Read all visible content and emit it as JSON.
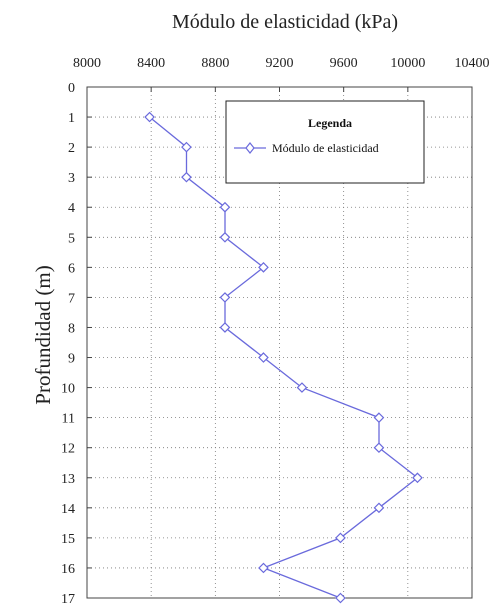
{
  "chart_data": {
    "type": "line",
    "title": "Módulo de elasticidad (kPa)",
    "xlabel": "Módulo de elasticidad (kPa)",
    "ylabel": "Profundidad (m)",
    "x_axis_position": "top",
    "y_axis_inverted": true,
    "xlim": [
      8000,
      10400
    ],
    "ylim": [
      0,
      17
    ],
    "x_ticks": [
      8000,
      8400,
      8800,
      9200,
      9600,
      10000,
      10400
    ],
    "y_ticks": [
      0,
      1,
      2,
      3,
      4,
      5,
      6,
      7,
      8,
      9,
      10,
      11,
      12,
      13,
      14,
      15,
      16,
      17
    ],
    "grid": true,
    "grid_style": "dotted",
    "legend": {
      "title": "Legenda",
      "position": "top-right"
    },
    "series": [
      {
        "name": "Módulo de elasticidad",
        "color": "#6a6adc",
        "marker": "diamond",
        "points": [
          {
            "x": 8390,
            "y": 1
          },
          {
            "x": 8620,
            "y": 2
          },
          {
            "x": 8620,
            "y": 3
          },
          {
            "x": 8860,
            "y": 4
          },
          {
            "x": 8860,
            "y": 5
          },
          {
            "x": 9100,
            "y": 6
          },
          {
            "x": 8860,
            "y": 7
          },
          {
            "x": 8860,
            "y": 8
          },
          {
            "x": 9100,
            "y": 9
          },
          {
            "x": 9340,
            "y": 10
          },
          {
            "x": 9820,
            "y": 11
          },
          {
            "x": 9820,
            "y": 12
          },
          {
            "x": 10060,
            "y": 13
          },
          {
            "x": 9820,
            "y": 14
          },
          {
            "x": 9580,
            "y": 15
          },
          {
            "x": 9100,
            "y": 16
          },
          {
            "x": 9580,
            "y": 17
          }
        ]
      }
    ]
  }
}
